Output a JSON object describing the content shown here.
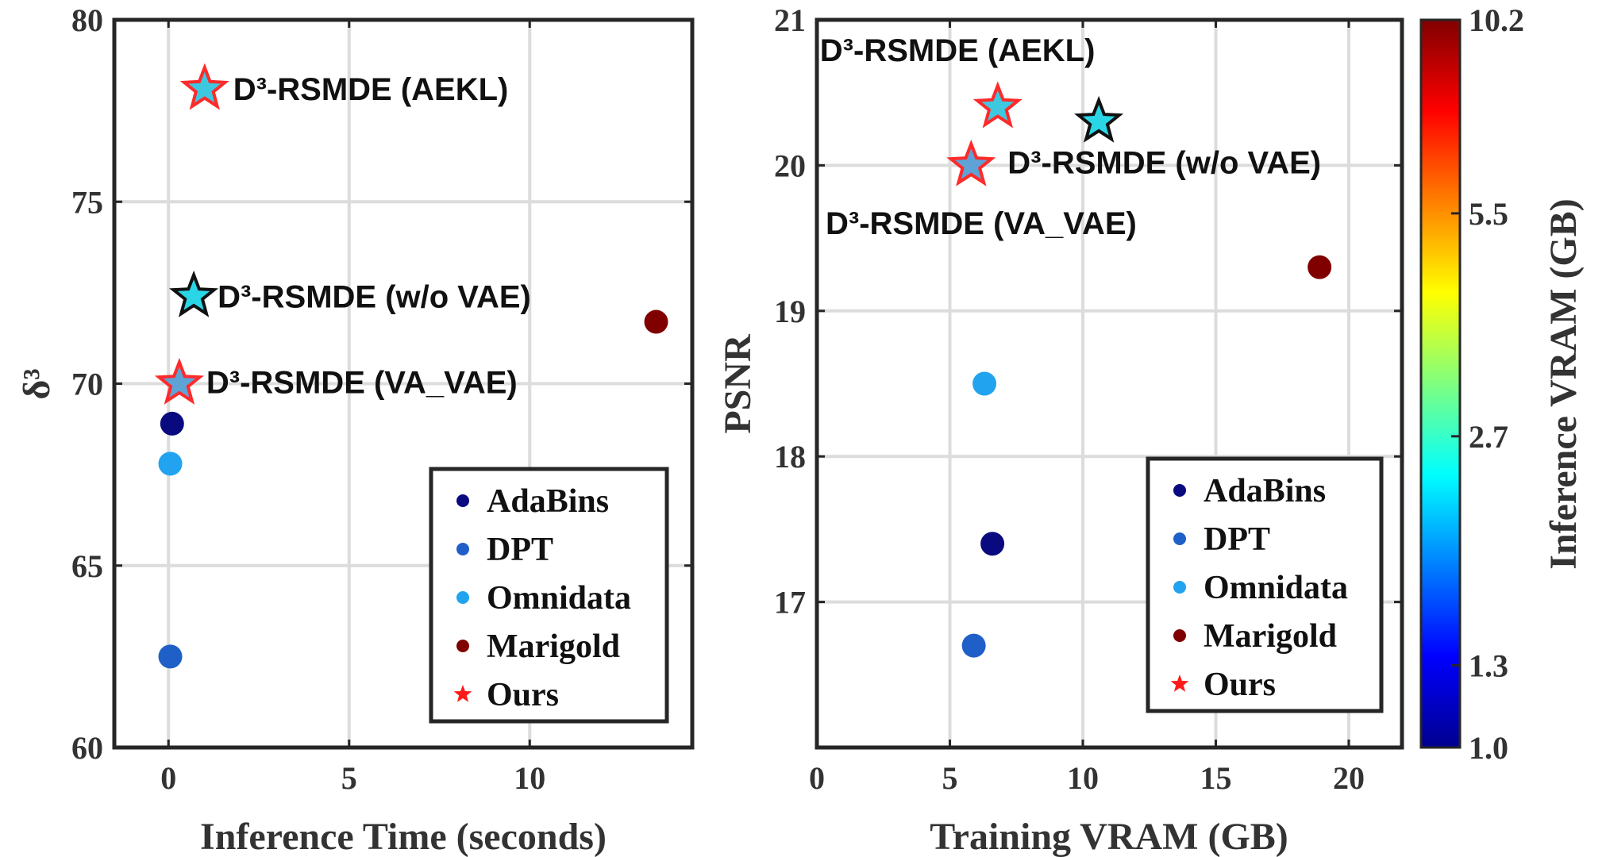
{
  "chart_data": [
    {
      "type": "scatter",
      "xlabel": "Inference Time (seconds)",
      "ylabel": "δ³",
      "xlim": [
        -1.5,
        14.5
      ],
      "ylim": [
        60,
        80
      ],
      "xticks": [
        "0",
        "5",
        "10"
      ],
      "yticks": [
        "60",
        "65",
        "70",
        "75",
        "80"
      ],
      "grid": true,
      "legend_position": "bottom-right",
      "series": [
        {
          "name": "AdaBins",
          "marker": "circle",
          "color": "#0a0a80",
          "points": [
            {
              "x": 0.1,
              "y": 68.9
            }
          ]
        },
        {
          "name": "DPT",
          "marker": "circle",
          "color": "#1f5fc8",
          "points": [
            {
              "x": 0.05,
              "y": 62.5
            }
          ]
        },
        {
          "name": "Omnidata",
          "marker": "circle",
          "color": "#21a3ef",
          "points": [
            {
              "x": 0.05,
              "y": 67.8
            }
          ]
        },
        {
          "name": "Marigold",
          "marker": "circle",
          "color": "#800000",
          "points": [
            {
              "x": 13.5,
              "y": 71.7
            }
          ]
        },
        {
          "name": "Ours",
          "marker": "star",
          "color": "#ff1a1a",
          "points": [
            {
              "x": 1.0,
              "y": 78.1,
              "label": "D³-RSMDE (AEKL)",
              "fill": "#3ec8e0",
              "edge": "#ff2a2a"
            },
            {
              "x": 0.7,
              "y": 72.4,
              "label": "D³-RSMDE (w/o VAE)",
              "fill": "#2ad6e6",
              "edge": "#111111"
            },
            {
              "x": 0.3,
              "y": 70.0,
              "label": "D³-RSMDE (VA_VAE)",
              "fill": "#5fa2d6",
              "edge": "#ff2a2a"
            }
          ]
        }
      ]
    },
    {
      "type": "scatter",
      "xlabel": "Training VRAM (GB)",
      "ylabel": "PSNR",
      "xlim": [
        0,
        22
      ],
      "ylim": [
        16,
        21
      ],
      "xticks": [
        "0",
        "5",
        "10",
        "15",
        "20"
      ],
      "yticks": [
        "17",
        "18",
        "19",
        "20",
        "21"
      ],
      "grid": true,
      "legend_position": "bottom-right",
      "series": [
        {
          "name": "AdaBins",
          "marker": "circle",
          "color": "#0a0a80",
          "points": [
            {
              "x": 6.6,
              "y": 17.4
            }
          ]
        },
        {
          "name": "DPT",
          "marker": "circle",
          "color": "#1f5fc8",
          "points": [
            {
              "x": 5.9,
              "y": 16.7
            }
          ]
        },
        {
          "name": "Omnidata",
          "marker": "circle",
          "color": "#21a3ef",
          "points": [
            {
              "x": 6.3,
              "y": 18.5
            }
          ]
        },
        {
          "name": "Marigold",
          "marker": "circle",
          "color": "#800000",
          "points": [
            {
              "x": 18.9,
              "y": 19.3
            }
          ]
        },
        {
          "name": "Ours",
          "marker": "star",
          "color": "#ff1a1a",
          "points": [
            {
              "x": 6.8,
              "y": 20.4,
              "label": "D³-RSMDE (AEKL)",
              "fill": "#3ec8e0",
              "edge": "#ff2a2a"
            },
            {
              "x": 10.6,
              "y": 20.3,
              "label": "",
              "fill": "#2ad6e6",
              "edge": "#111111"
            },
            {
              "x": 5.8,
              "y": 20.0,
              "label": "D³-RSMDE (w/o VAE)",
              "fill": "#5fa2d6",
              "edge": "#ff2a2a"
            }
          ]
        }
      ],
      "extra_labels": [
        "D³-RSMDE (VA_VAE)"
      ]
    }
  ],
  "colorbar": {
    "label": "Inference VRAM (GB)",
    "ticks": [
      "1.0",
      "1.3",
      "2.7",
      "5.5",
      "10.2"
    ],
    "colormap": "jet"
  }
}
